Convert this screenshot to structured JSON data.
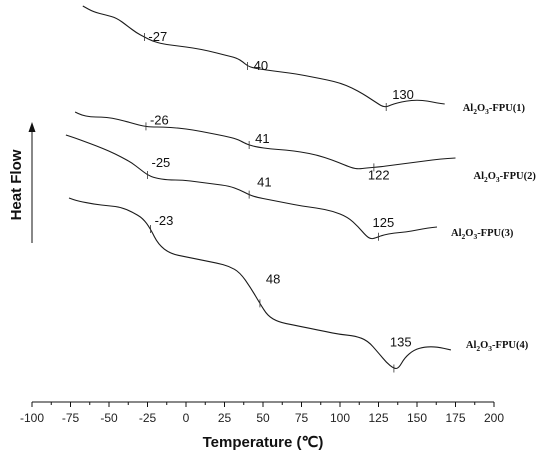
{
  "chart_data": {
    "type": "line",
    "title": "",
    "xlabel": "Temperature (℃)",
    "ylabel": "Heat Flow",
    "xlim": [
      -100,
      200
    ],
    "x_ticks": [
      -100,
      -75,
      -50,
      -25,
      0,
      25,
      50,
      75,
      100,
      125,
      150,
      175,
      200
    ],
    "grid": false,
    "legend": "curve labels at right end of each trace",
    "series": [
      {
        "label_main": "Al",
        "label_sub1": "2",
        "label_mid": "O",
        "label_sub2": "3",
        "label_tail": "-FPU(1)",
        "annotations": [
          {
            "x": -27,
            "text": "-27"
          },
          {
            "x": 40,
            "text": "40"
          },
          {
            "x": 130,
            "text": "130"
          }
        ],
        "x": [
          -67,
          -60,
          -52,
          -45,
          -38,
          -32,
          -27,
          -22,
          -15,
          -5,
          5,
          15,
          25,
          33,
          37,
          40,
          44,
          52,
          62,
          72,
          82,
          92,
          100,
          108,
          115,
          120,
          124,
          127,
          130,
          133,
          137,
          143,
          150,
          157,
          163,
          168
        ],
        "y": [
          0,
          6,
          9,
          12,
          20,
          27,
          31,
          35,
          38,
          40,
          42,
          45,
          49,
          52,
          56,
          60,
          62,
          64,
          66,
          68,
          71,
          74,
          77,
          82,
          88,
          93,
          97,
          100,
          101,
          99,
          97,
          95,
          94,
          95,
          97,
          98
        ]
      },
      {
        "label_main": "Al",
        "label_sub1": "2",
        "label_mid": "O",
        "label_sub2": "3",
        "label_tail": "-FPU(2)",
        "annotations": [
          {
            "x": -26,
            "text": "-26"
          },
          {
            "x": 41,
            "text": "41"
          },
          {
            "x": 122,
            "text": "122"
          }
        ],
        "x": [
          -72,
          -68,
          -62,
          -55,
          -48,
          -40,
          -33,
          -28,
          -23,
          -15,
          -5,
          5,
          15,
          25,
          33,
          38,
          41,
          46,
          55,
          65,
          75,
          85,
          95,
          103,
          108,
          112,
          117,
          125,
          135,
          145,
          155,
          165,
          175
        ],
        "y": [
          0,
          3,
          5,
          5,
          6,
          9,
          12,
          14,
          15,
          15,
          16,
          18,
          21,
          24,
          27,
          31,
          33,
          35,
          37,
          38,
          40,
          43,
          48,
          53,
          56,
          57,
          56,
          55,
          53,
          51,
          49,
          47,
          46
        ]
      },
      {
        "label_main": "Al",
        "label_sub1": "2",
        "label_mid": "O",
        "label_sub2": "3",
        "label_tail": "-FPU(3)",
        "annotations": [
          {
            "x": -25,
            "text": "-25"
          },
          {
            "x": 41,
            "text": "41"
          },
          {
            "x": 125,
            "text": "125"
          }
        ],
        "x": [
          -78,
          -72,
          -65,
          -58,
          -50,
          -42,
          -35,
          -30,
          -25,
          -20,
          -12,
          -2,
          8,
          18,
          28,
          35,
          40,
          45,
          55,
          65,
          75,
          85,
          95,
          105,
          112,
          117,
          120,
          123,
          128,
          135,
          143,
          150,
          157,
          163
        ],
        "y": [
          0,
          3,
          7,
          11,
          16,
          22,
          28,
          34,
          40,
          43,
          45,
          45,
          47,
          49,
          51,
          55,
          59,
          62,
          65,
          68,
          71,
          73,
          76,
          82,
          92,
          101,
          104,
          103,
          100,
          98,
          97,
          95,
          93,
          92
        ]
      },
      {
        "label_main": "Al",
        "label_sub1": "2",
        "label_mid": "O",
        "label_sub2": "3",
        "label_tail": "-FPU(4)",
        "annotations": [
          {
            "x": -23,
            "text": "-23"
          },
          {
            "x": 48,
            "text": "48"
          },
          {
            "x": 135,
            "text": "135"
          }
        ],
        "x": [
          -76,
          -70,
          -60,
          -50,
          -42,
          -35,
          -28,
          -23,
          -18,
          -10,
          0,
          10,
          20,
          28,
          35,
          42,
          48,
          53,
          60,
          70,
          80,
          90,
          100,
          110,
          118,
          125,
          130,
          135,
          138,
          142,
          148,
          155,
          163,
          172
        ],
        "y": [
          0,
          2,
          4,
          5,
          6,
          9,
          13,
          20,
          30,
          36,
          38,
          40,
          42,
          44,
          48,
          58,
          68,
          76,
          80,
          82,
          84,
          86,
          88,
          89,
          92,
          100,
          106,
          110,
          110,
          103,
          98,
          96,
          96,
          98
        ]
      }
    ]
  }
}
